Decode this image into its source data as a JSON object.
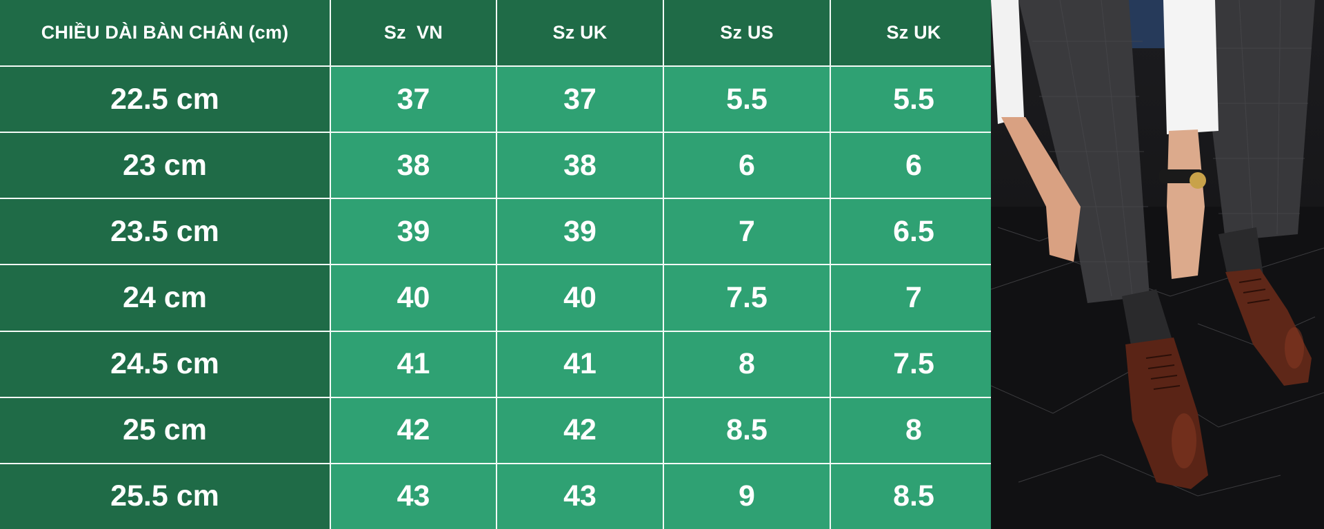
{
  "table": {
    "headers": [
      "CHIỀU DÀI BÀN CHÂN (cm)",
      "Sz  VN",
      "Sz UK",
      "Sz US",
      "Sz UK"
    ],
    "rows": [
      {
        "length": "22.5 cm",
        "vn": "37",
        "uk": "37",
        "us": "5.5",
        "uk2": "5.5"
      },
      {
        "length": "23 cm",
        "vn": "38",
        "uk": "38",
        "us": "6",
        "uk2": "6"
      },
      {
        "length": "23.5 cm",
        "vn": "39",
        "uk": "39",
        "us": "7",
        "uk2": "6.5"
      },
      {
        "length": "24 cm",
        "vn": "40",
        "uk": "40",
        "us": "7.5",
        "uk2": "7"
      },
      {
        "length": "24.5 cm",
        "vn": "41",
        "uk": "41",
        "us": "8",
        "uk2": "7.5"
      },
      {
        "length": "25 cm",
        "vn": "42",
        "uk": "42",
        "us": "8.5",
        "uk2": "8"
      },
      {
        "length": "25.5 cm",
        "vn": "43",
        "uk": "43",
        "us": "9",
        "uk2": "8.5"
      }
    ]
  },
  "colors": {
    "dark_green": "#1f6b47",
    "light_green": "#2fa173",
    "grid_line": "#f4fbf7",
    "text": "#ffffff"
  }
}
